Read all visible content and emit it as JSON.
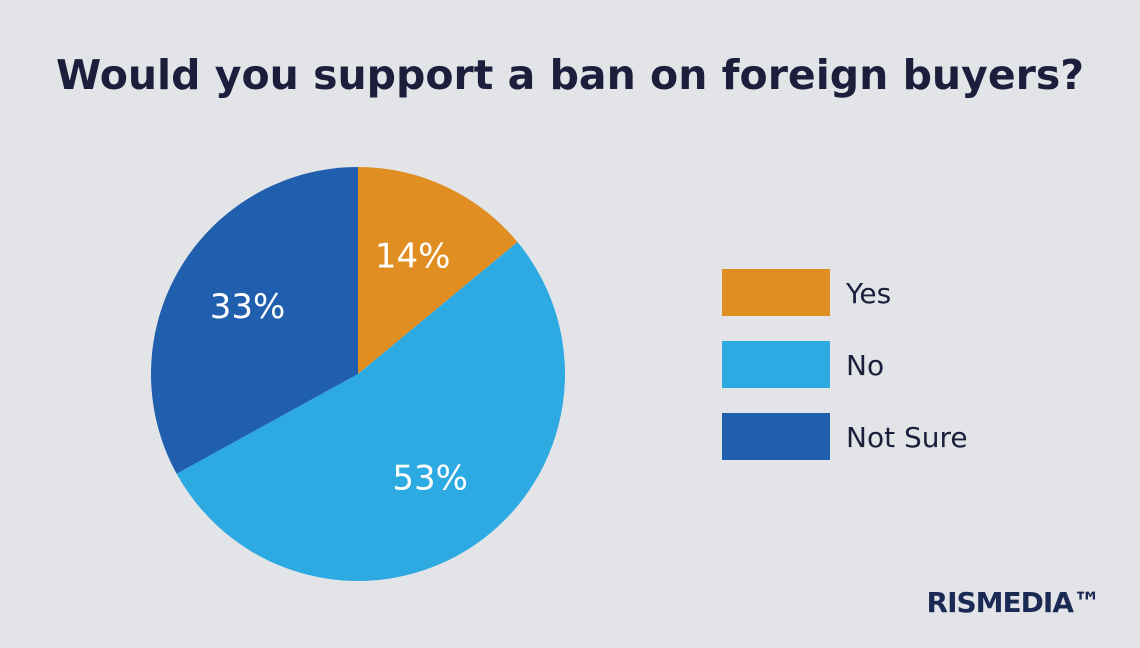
{
  "chart_data": {
    "type": "pie",
    "title": "Would you support a ban on foreign buyers?",
    "categories": [
      "Yes",
      "No",
      "Not Sure"
    ],
    "values": [
      14,
      53,
      33
    ],
    "value_labels": [
      "14%",
      "53%",
      "33%"
    ],
    "colors": [
      "#e08e22",
      "#2eaae2",
      "#1f5fae"
    ],
    "legend": "right",
    "logo": "RISMEDIA™"
  }
}
